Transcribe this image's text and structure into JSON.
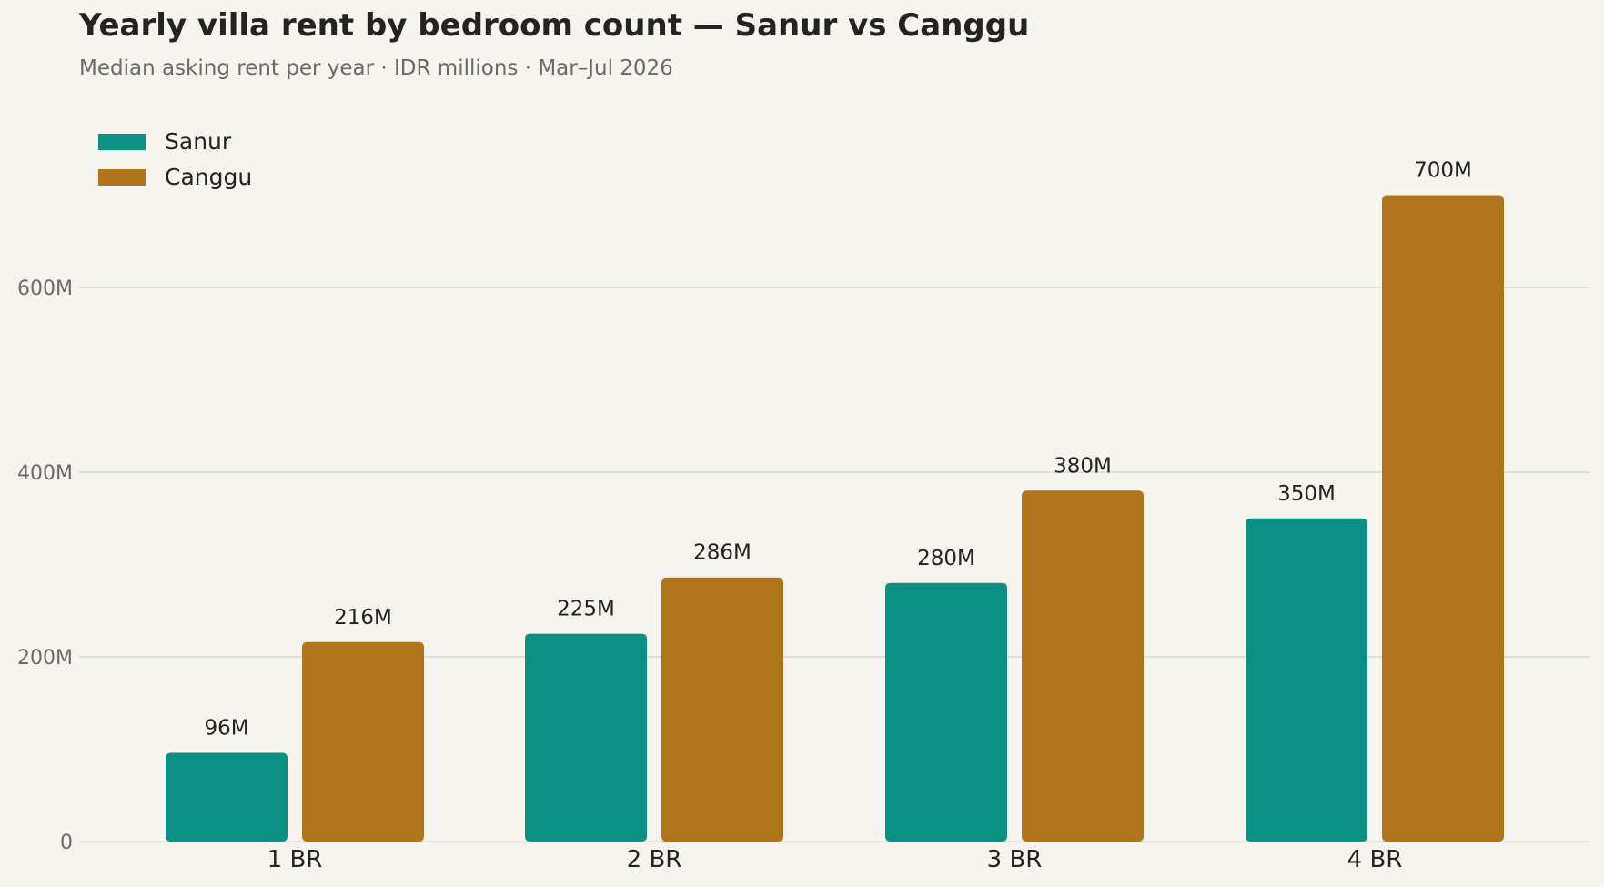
{
  "chart_data": {
    "type": "bar",
    "title": "Yearly villa rent by bedroom count — Sanur vs Canggu",
    "subtitle": "Median asking rent per year · IDR millions · Mar–Jul 2026",
    "xlabel": "",
    "ylabel": "",
    "categories": [
      "1 BR",
      "2 BR",
      "3 BR",
      "4 BR"
    ],
    "series": [
      {
        "name": "Sanur",
        "color": "#0c9084",
        "values": [
          96,
          225,
          280,
          350
        ],
        "labels": [
          "96M",
          "225M",
          "280M",
          "350M"
        ]
      },
      {
        "name": "Canggu",
        "color": "#b0751b",
        "values": [
          216,
          286,
          380,
          700
        ],
        "labels": [
          "216M",
          "286M",
          "380M",
          "700M"
        ]
      }
    ],
    "ylim": [
      0,
      780
    ],
    "yticks": [
      0,
      200,
      400,
      600
    ],
    "ytick_labels": [
      "0",
      "200M",
      "400M",
      "600M"
    ],
    "grid": true,
    "legend_position": "top-left"
  }
}
